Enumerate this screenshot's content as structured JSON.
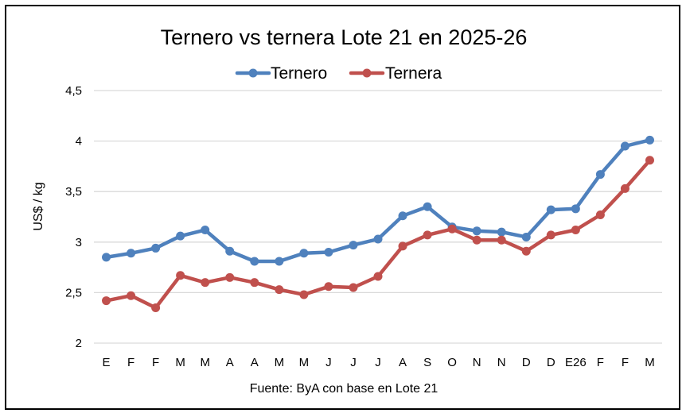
{
  "chart_data": {
    "type": "line",
    "title": "Ternero vs ternera Lote 21 en 2025-26",
    "ylabel": "US$ / kg",
    "xlabel": "",
    "source": "Fuente: ByA con base en Lote 21",
    "ylim": [
      2,
      4.5
    ],
    "yticks": [
      {
        "value": 2,
        "label": "2"
      },
      {
        "value": 2.5,
        "label": "2,5"
      },
      {
        "value": 3,
        "label": "3"
      },
      {
        "value": 3.5,
        "label": "3,5"
      },
      {
        "value": 4,
        "label": "4"
      },
      {
        "value": 4.5,
        "label": "4,5"
      }
    ],
    "grid": true,
    "legend_position": "top-center",
    "categories": [
      "E",
      "F",
      "F",
      "M",
      "M",
      "A",
      "A",
      "M",
      "M",
      "J",
      "J",
      "J",
      "A",
      "S",
      "O",
      "N",
      "N",
      "D",
      "D",
      "E26",
      "F",
      "F",
      "M"
    ],
    "series": [
      {
        "name": "Ternero",
        "color": "#4F81BD",
        "values": [
          2.85,
          2.89,
          2.94,
          3.06,
          3.12,
          2.91,
          2.81,
          2.81,
          2.89,
          2.9,
          2.97,
          3.03,
          3.26,
          3.35,
          3.15,
          3.11,
          3.1,
          3.05,
          3.32,
          3.33,
          3.67,
          3.95,
          4.01
        ]
      },
      {
        "name": "Ternera",
        "color": "#C0504D",
        "values": [
          2.42,
          2.47,
          2.35,
          2.67,
          2.6,
          2.65,
          2.6,
          2.53,
          2.48,
          2.56,
          2.55,
          2.66,
          2.96,
          3.07,
          3.13,
          3.02,
          3.02,
          2.91,
          3.07,
          3.12,
          3.27,
          3.53,
          3.81
        ]
      }
    ]
  }
}
